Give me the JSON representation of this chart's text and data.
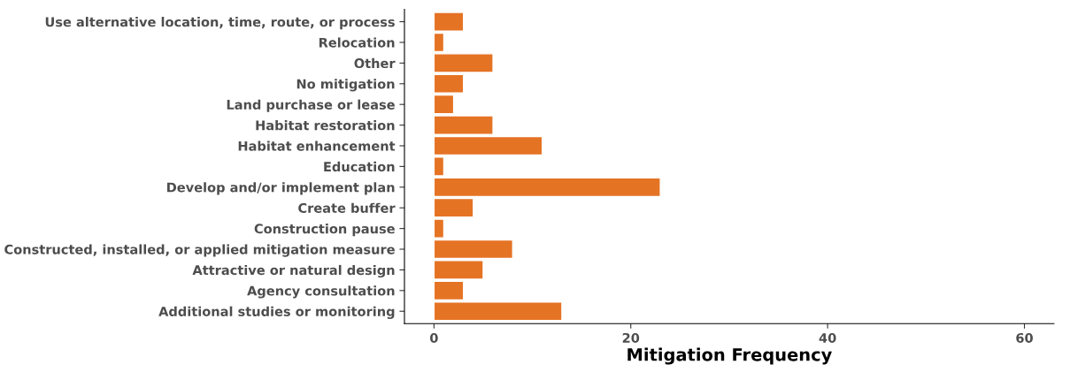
{
  "chart_data": {
    "type": "bar",
    "orientation": "horizontal",
    "xlabel": "Mitigation Frequency",
    "categories": [
      "Use alternative location, time, route, or process",
      "Relocation",
      "Other",
      "No mitigation",
      "Land purchase or lease",
      "Habitat restoration",
      "Habitat enhancement",
      "Education",
      "Develop and/or implement plan",
      "Create buffer",
      "Construction pause",
      "Constructed, installed, or applied mitigation measure",
      "Attractive or natural design",
      "Agency consultation",
      "Additional studies or monitoring"
    ],
    "values": [
      3,
      1,
      6,
      3,
      2,
      6,
      11,
      1,
      23,
      4,
      1,
      8,
      5,
      3,
      13
    ],
    "color": "#e57324",
    "xlim": [
      -3,
      63
    ],
    "xticks": [
      0,
      20,
      40,
      60
    ],
    "grid": false
  }
}
